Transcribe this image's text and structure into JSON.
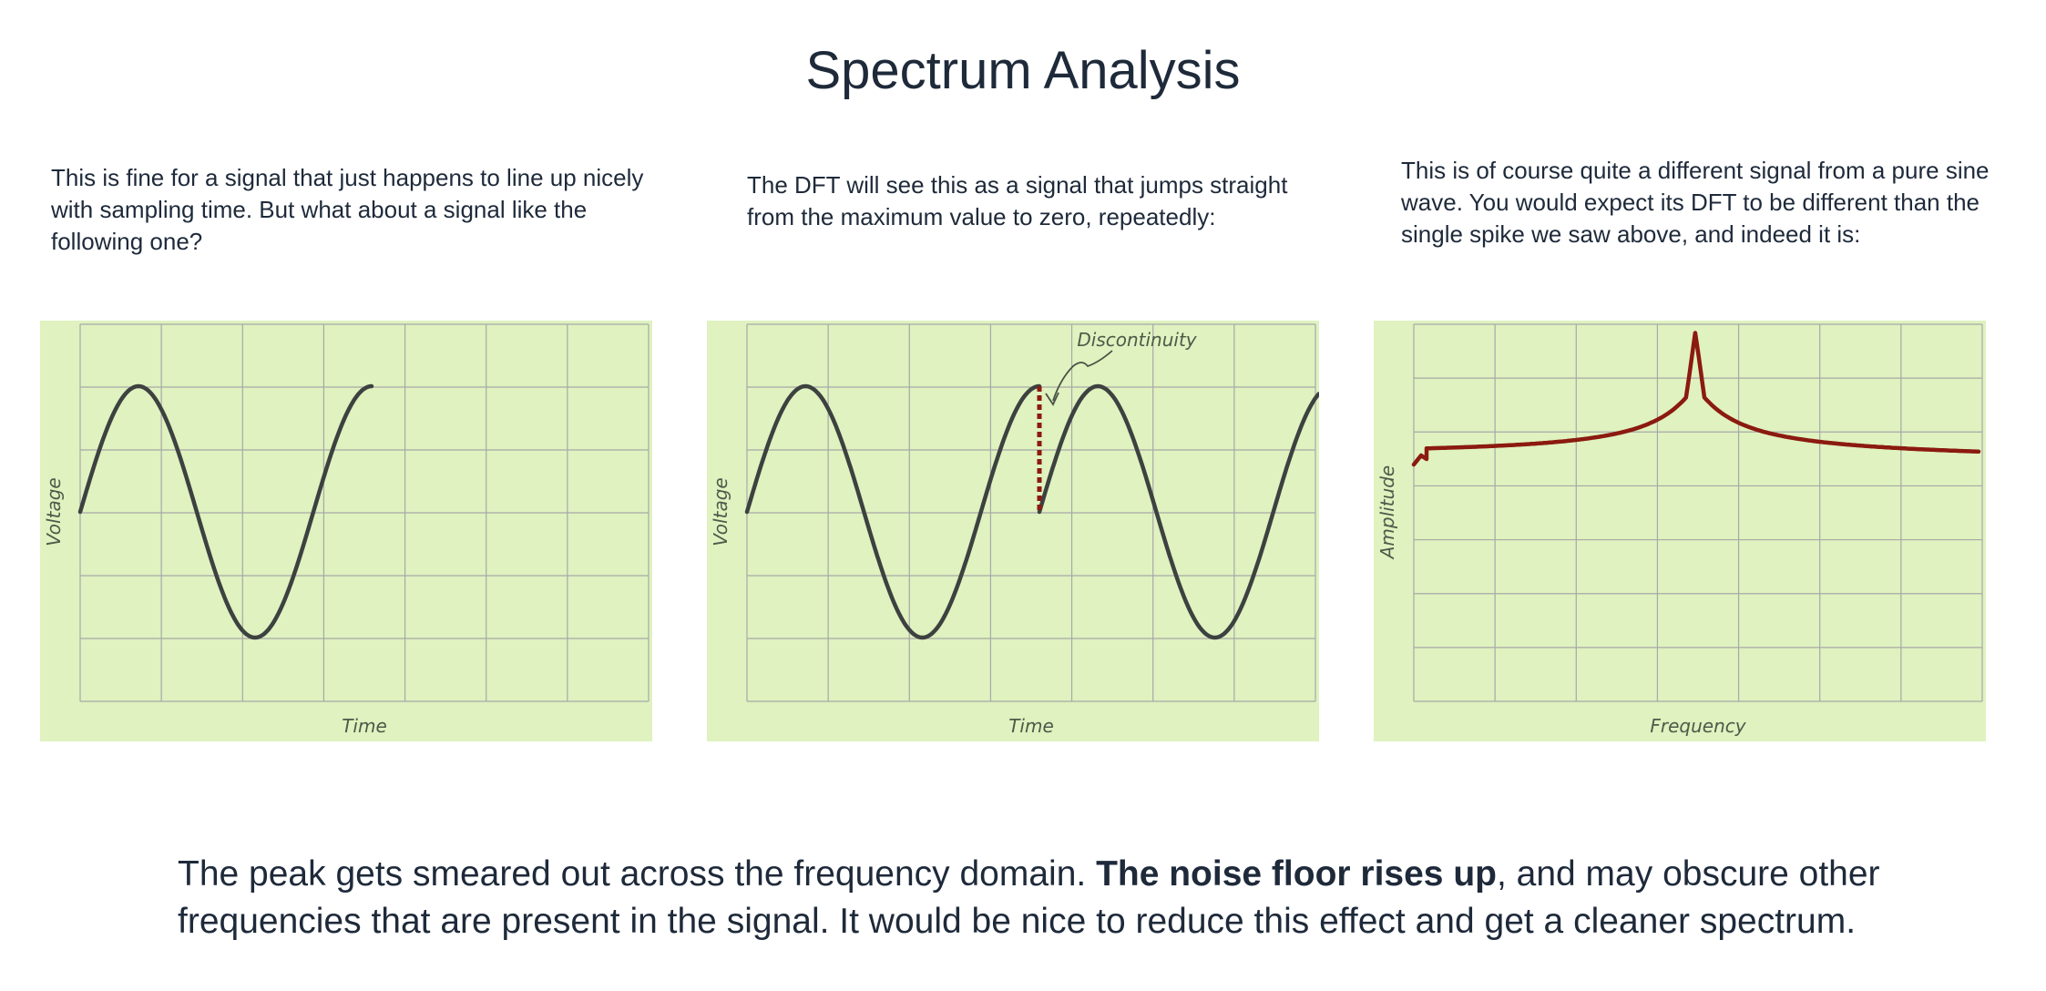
{
  "page": {
    "title": "Spectrum Analysis"
  },
  "columns": [
    {
      "text": "This is fine for a signal that just happens to line up nicely with sampling time. But what about a signal like the following one?"
    },
    {
      "text": "The DFT will see this as a signal that jumps straight from the maximum value to zero, repeatedly:"
    },
    {
      "text": "This is of course quite a different signal from a pure sine wave. You would expect its DFT to be different than the single spike we saw above, and indeed it is:"
    }
  ],
  "charts": [
    {
      "xlabel": "Time",
      "ylabel": "Voltage",
      "line_color": "#3d4140"
    },
    {
      "xlabel": "Time",
      "ylabel": "Voltage",
      "line_color": "#3d4140",
      "annotation": "Discontinuity",
      "accent_color": "#8b1a10"
    },
    {
      "xlabel": "Frequency",
      "ylabel": "Amplitude",
      "line_color": "#8b1a10"
    }
  ],
  "bottom": {
    "before": "The peak gets smeared out across the frequency domain. ",
    "bold": "The noise floor rises up",
    "after": ", and may obscure other frequencies that are present in the signal. It would be nice to reduce this effect and get a cleaner spectrum."
  },
  "colors": {
    "panel_bg": "#dff2bf",
    "grid": "#a8a8a8",
    "text": "#1e2a3a"
  }
}
